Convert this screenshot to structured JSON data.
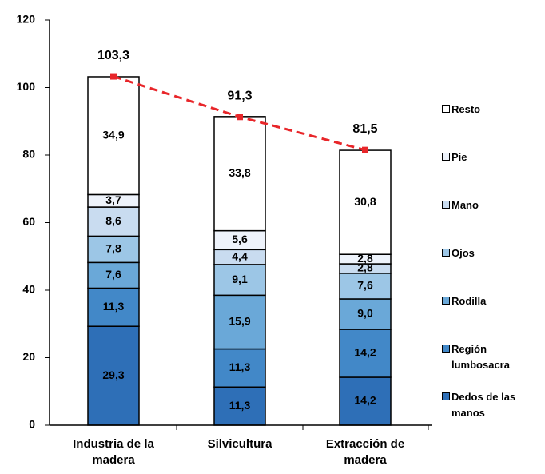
{
  "chart_data": {
    "type": "bar",
    "stacked": true,
    "categories": [
      "Industria de la madera",
      "Silvicultura",
      "Extracción de madera"
    ],
    "series": [
      {
        "name": "Dedos de las manos",
        "color": "#2e6fb7",
        "values": [
          29.3,
          11.3,
          14.2
        ],
        "value_labels": [
          "29,3",
          "11,3",
          "14,2"
        ]
      },
      {
        "name": "Región lumbosacra",
        "color": "#4288c8",
        "values": [
          11.3,
          11.3,
          14.2
        ],
        "value_labels": [
          "11,3",
          "11,3",
          "14,2"
        ]
      },
      {
        "name": "Rodilla",
        "color": "#6aa8d8",
        "values": [
          7.6,
          15.9,
          9.0
        ],
        "value_labels": [
          "7,6",
          "15,9",
          "9,0"
        ]
      },
      {
        "name": "Ojos",
        "color": "#9cc6e6",
        "values": [
          7.8,
          9.1,
          7.6
        ],
        "value_labels": [
          "7,8",
          "9,1",
          "7,6"
        ]
      },
      {
        "name": "Mano",
        "color": "#c9dcf0",
        "values": [
          8.6,
          4.4,
          2.8
        ],
        "value_labels": [
          "8,6",
          "4,4",
          "2,8"
        ]
      },
      {
        "name": "Pie",
        "color": "#eef3fb",
        "values": [
          3.7,
          5.6,
          2.8
        ],
        "value_labels": [
          "3,7",
          "5,6",
          "2,8"
        ]
      },
      {
        "name": "Resto",
        "color": "#ffffff",
        "values": [
          34.9,
          33.8,
          30.8
        ],
        "value_labels": [
          "34,9",
          "33,8",
          "30,8"
        ]
      }
    ],
    "totals": {
      "type": "line",
      "color": "#e8262a",
      "values": [
        103.3,
        91.3,
        81.5
      ],
      "value_labels": [
        "103,3",
        "91,3",
        "81,5"
      ]
    },
    "ylim": [
      0,
      120
    ],
    "yticks": [
      0,
      20,
      40,
      60,
      80,
      100,
      120
    ],
    "grid": false,
    "legend": "right"
  }
}
